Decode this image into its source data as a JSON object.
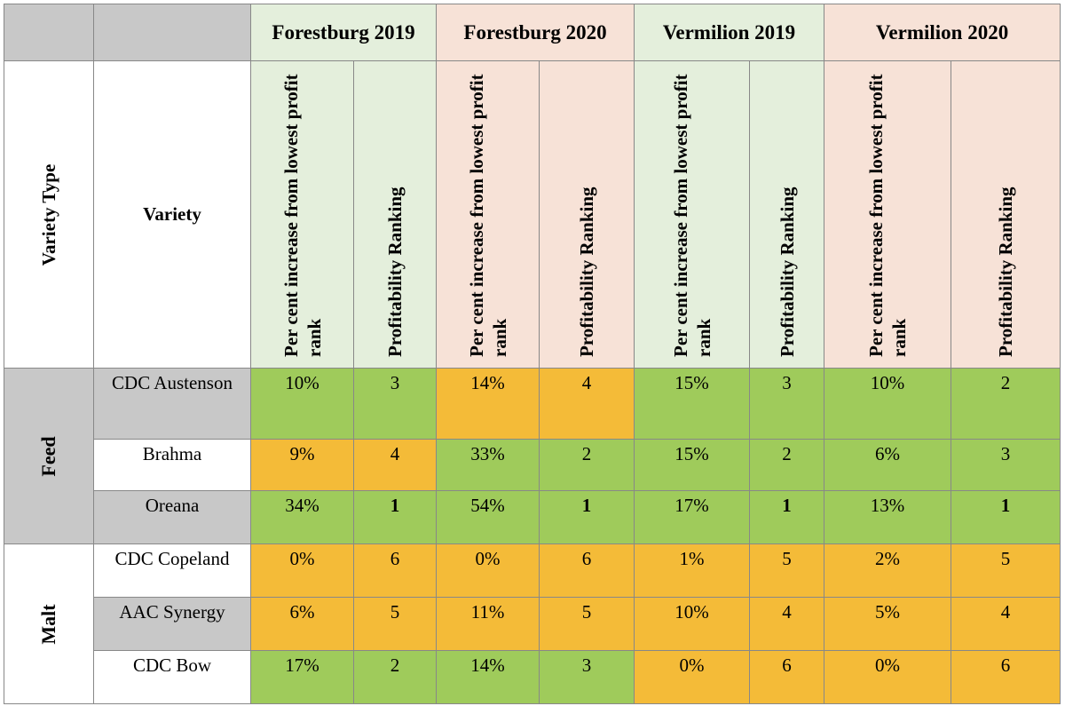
{
  "sites": [
    "Forestburg 2019",
    "Forestburg 2020",
    "Vermilion 2019",
    "Vermilion 2020"
  ],
  "subheaders": {
    "percent": "Per cent increase from lowest profit rank",
    "rank": "Profitability Ranking"
  },
  "col_labels": {
    "variety_type": "Variety Type",
    "variety": "Variety"
  },
  "groups": [
    {
      "type": "Feed",
      "rows": [
        {
          "variety": "CDC Austenson",
          "cells": [
            [
              "10%",
              "3"
            ],
            [
              "14%",
              "4"
            ],
            [
              "15%",
              "3"
            ],
            [
              "10%",
              "2"
            ]
          ]
        },
        {
          "variety": "Brahma",
          "cells": [
            [
              "9%",
              "4"
            ],
            [
              "33%",
              "2"
            ],
            [
              "15%",
              "2"
            ],
            [
              "6%",
              "3"
            ]
          ]
        },
        {
          "variety": "Oreana",
          "cells": [
            [
              "34%",
              "1"
            ],
            [
              "54%",
              "1"
            ],
            [
              "17%",
              "1"
            ],
            [
              "13%",
              "1"
            ]
          ]
        }
      ]
    },
    {
      "type": "Malt",
      "rows": [
        {
          "variety": "CDC Copeland",
          "cells": [
            [
              "0%",
              "6"
            ],
            [
              "0%",
              "6"
            ],
            [
              "1%",
              "5"
            ],
            [
              "2%",
              "5"
            ]
          ]
        },
        {
          "variety": "AAC Synergy",
          "cells": [
            [
              "6%",
              "5"
            ],
            [
              "11%",
              "5"
            ],
            [
              "10%",
              "4"
            ],
            [
              "5%",
              "4"
            ]
          ]
        },
        {
          "variety": "CDC Bow",
          "cells": [
            [
              "17%",
              "2"
            ],
            [
              "14%",
              "3"
            ],
            [
              "0%",
              "6"
            ],
            [
              "0%",
              "6"
            ]
          ]
        }
      ]
    }
  ],
  "colors": {
    "green": "#9fcb5b",
    "orange": "#f4bb38",
    "header_green": "#e4efdc",
    "header_peach": "#f7e2d7",
    "grey": "#c8c8c8"
  }
}
